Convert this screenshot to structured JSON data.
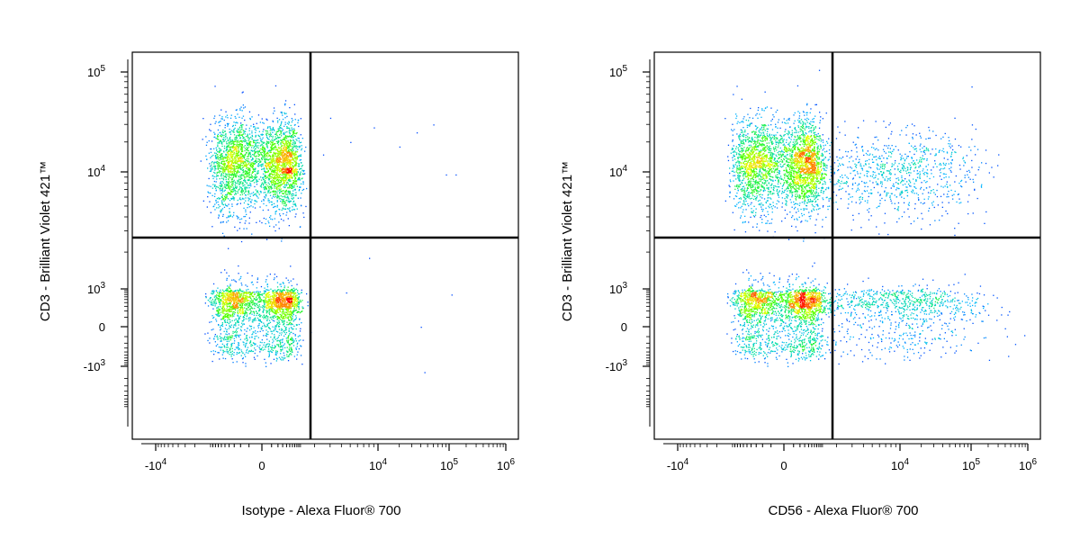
{
  "chart_data": [
    {
      "type": "scatter",
      "subtype": "flow-cytometry-density-dot-plot",
      "xlabel": "Isotype - Alexa Fluor® 700",
      "ylabel": "CD3 - Brilliant Violet 421™",
      "x_scale": "biexponential",
      "y_scale": "biexponential",
      "xlim": [
        -30000,
        1300000
      ],
      "ylim": [
        -20000,
        180000
      ],
      "xticks": [
        {
          "value": -10000,
          "base": "-10",
          "exp": "4"
        },
        {
          "value": 0,
          "base": "0",
          "exp": ""
        },
        {
          "value": 10000,
          "base": "10",
          "exp": "4"
        },
        {
          "value": 100000,
          "base": "10",
          "exp": "5"
        },
        {
          "value": 1000000,
          "base": "10",
          "exp": "6"
        }
      ],
      "yticks": [
        {
          "value": 100000,
          "base": "10",
          "exp": "5"
        },
        {
          "value": 10000,
          "base": "10",
          "exp": "4"
        },
        {
          "value": 1000,
          "base": "10",
          "exp": "3"
        },
        {
          "value": 0,
          "base": "0",
          "exp": ""
        },
        {
          "value": -1000,
          "base": "-10",
          "exp": "3"
        }
      ],
      "quadrant_gate": {
        "x": 1800,
        "y": 2600
      },
      "colormap": [
        "#0000ff",
        "#00b4ff",
        "#00e0a0",
        "#40ff00",
        "#e8ff00",
        "#ff9000",
        "#ff0000"
      ],
      "populations": [
        {
          "name": "",
          "x_center": 0,
          "y_center": 12000,
          "x_spread_log": 0.0,
          "y_spread_log": 0.22,
          "x_sd_lin": 420,
          "y_sd_lin": 0,
          "n": 3200
        },
        {
          "name": "",
          "x_center": 0,
          "y_center": 300,
          "x_sd_lin": 420,
          "y_sd_lin": 380,
          "n": 2400
        }
      ],
      "outlier_points": [
        {
          "x": 3000,
          "y": 35000
        },
        {
          "x": 5000,
          "y": 20000
        },
        {
          "x": 9000,
          "y": 28000
        },
        {
          "x": 20000,
          "y": 18000
        },
        {
          "x": 35000,
          "y": 25000
        },
        {
          "x": 60000,
          "y": 30000
        },
        {
          "x": 90000,
          "y": 9500
        },
        {
          "x": 130000,
          "y": 9500
        },
        {
          "x": 2500,
          "y": 15000
        },
        {
          "x": 4500,
          "y": 800
        },
        {
          "x": 8000,
          "y": 1800
        },
        {
          "x": 45000,
          "y": -1400
        },
        {
          "x": 40000,
          "y": 0
        },
        {
          "x": 110000,
          "y": 700
        }
      ]
    },
    {
      "type": "scatter",
      "subtype": "flow-cytometry-density-dot-plot",
      "xlabel": "CD56 - Alexa Fluor® 700",
      "ylabel": "CD3 - Brilliant Violet 421™",
      "x_scale": "biexponential",
      "y_scale": "biexponential",
      "xlim": [
        -30000,
        1300000
      ],
      "ylim": [
        -20000,
        180000
      ],
      "xticks": [
        {
          "value": -10000,
          "base": "-10",
          "exp": "4"
        },
        {
          "value": 0,
          "base": "0",
          "exp": ""
        },
        {
          "value": 10000,
          "base": "10",
          "exp": "4"
        },
        {
          "value": 100000,
          "base": "10",
          "exp": "5"
        },
        {
          "value": 1000000,
          "base": "10",
          "exp": "6"
        }
      ],
      "yticks": [
        {
          "value": 100000,
          "base": "10",
          "exp": "5"
        },
        {
          "value": 10000,
          "base": "10",
          "exp": "4"
        },
        {
          "value": 1000,
          "base": "10",
          "exp": "3"
        },
        {
          "value": 0,
          "base": "0",
          "exp": ""
        },
        {
          "value": -1000,
          "base": "-10",
          "exp": "3"
        }
      ],
      "quadrant_gate": {
        "x": 1800,
        "y": 2600
      },
      "colormap": [
        "#0000ff",
        "#00b4ff",
        "#00e0a0",
        "#40ff00",
        "#e8ff00",
        "#ff9000",
        "#ff0000"
      ],
      "populations": [
        {
          "name": "",
          "x_center": 0,
          "y_center": 12000,
          "x_sd_lin": 420,
          "y_spread_log": 0.22,
          "n": 3000
        },
        {
          "name": "",
          "x_center": 0,
          "y_center": 300,
          "x_sd_lin": 420,
          "y_sd_lin": 380,
          "n": 2200
        },
        {
          "name": "",
          "x_center": 9000,
          "y_center": 10000,
          "x_spread_log": 0.55,
          "y_spread_log": 0.2,
          "n": 900
        },
        {
          "name": "",
          "x_center": 9000,
          "y_center": 300,
          "x_spread_log": 0.6,
          "y_sd_lin": 380,
          "n": 1000
        }
      ],
      "outlier_points": []
    }
  ]
}
